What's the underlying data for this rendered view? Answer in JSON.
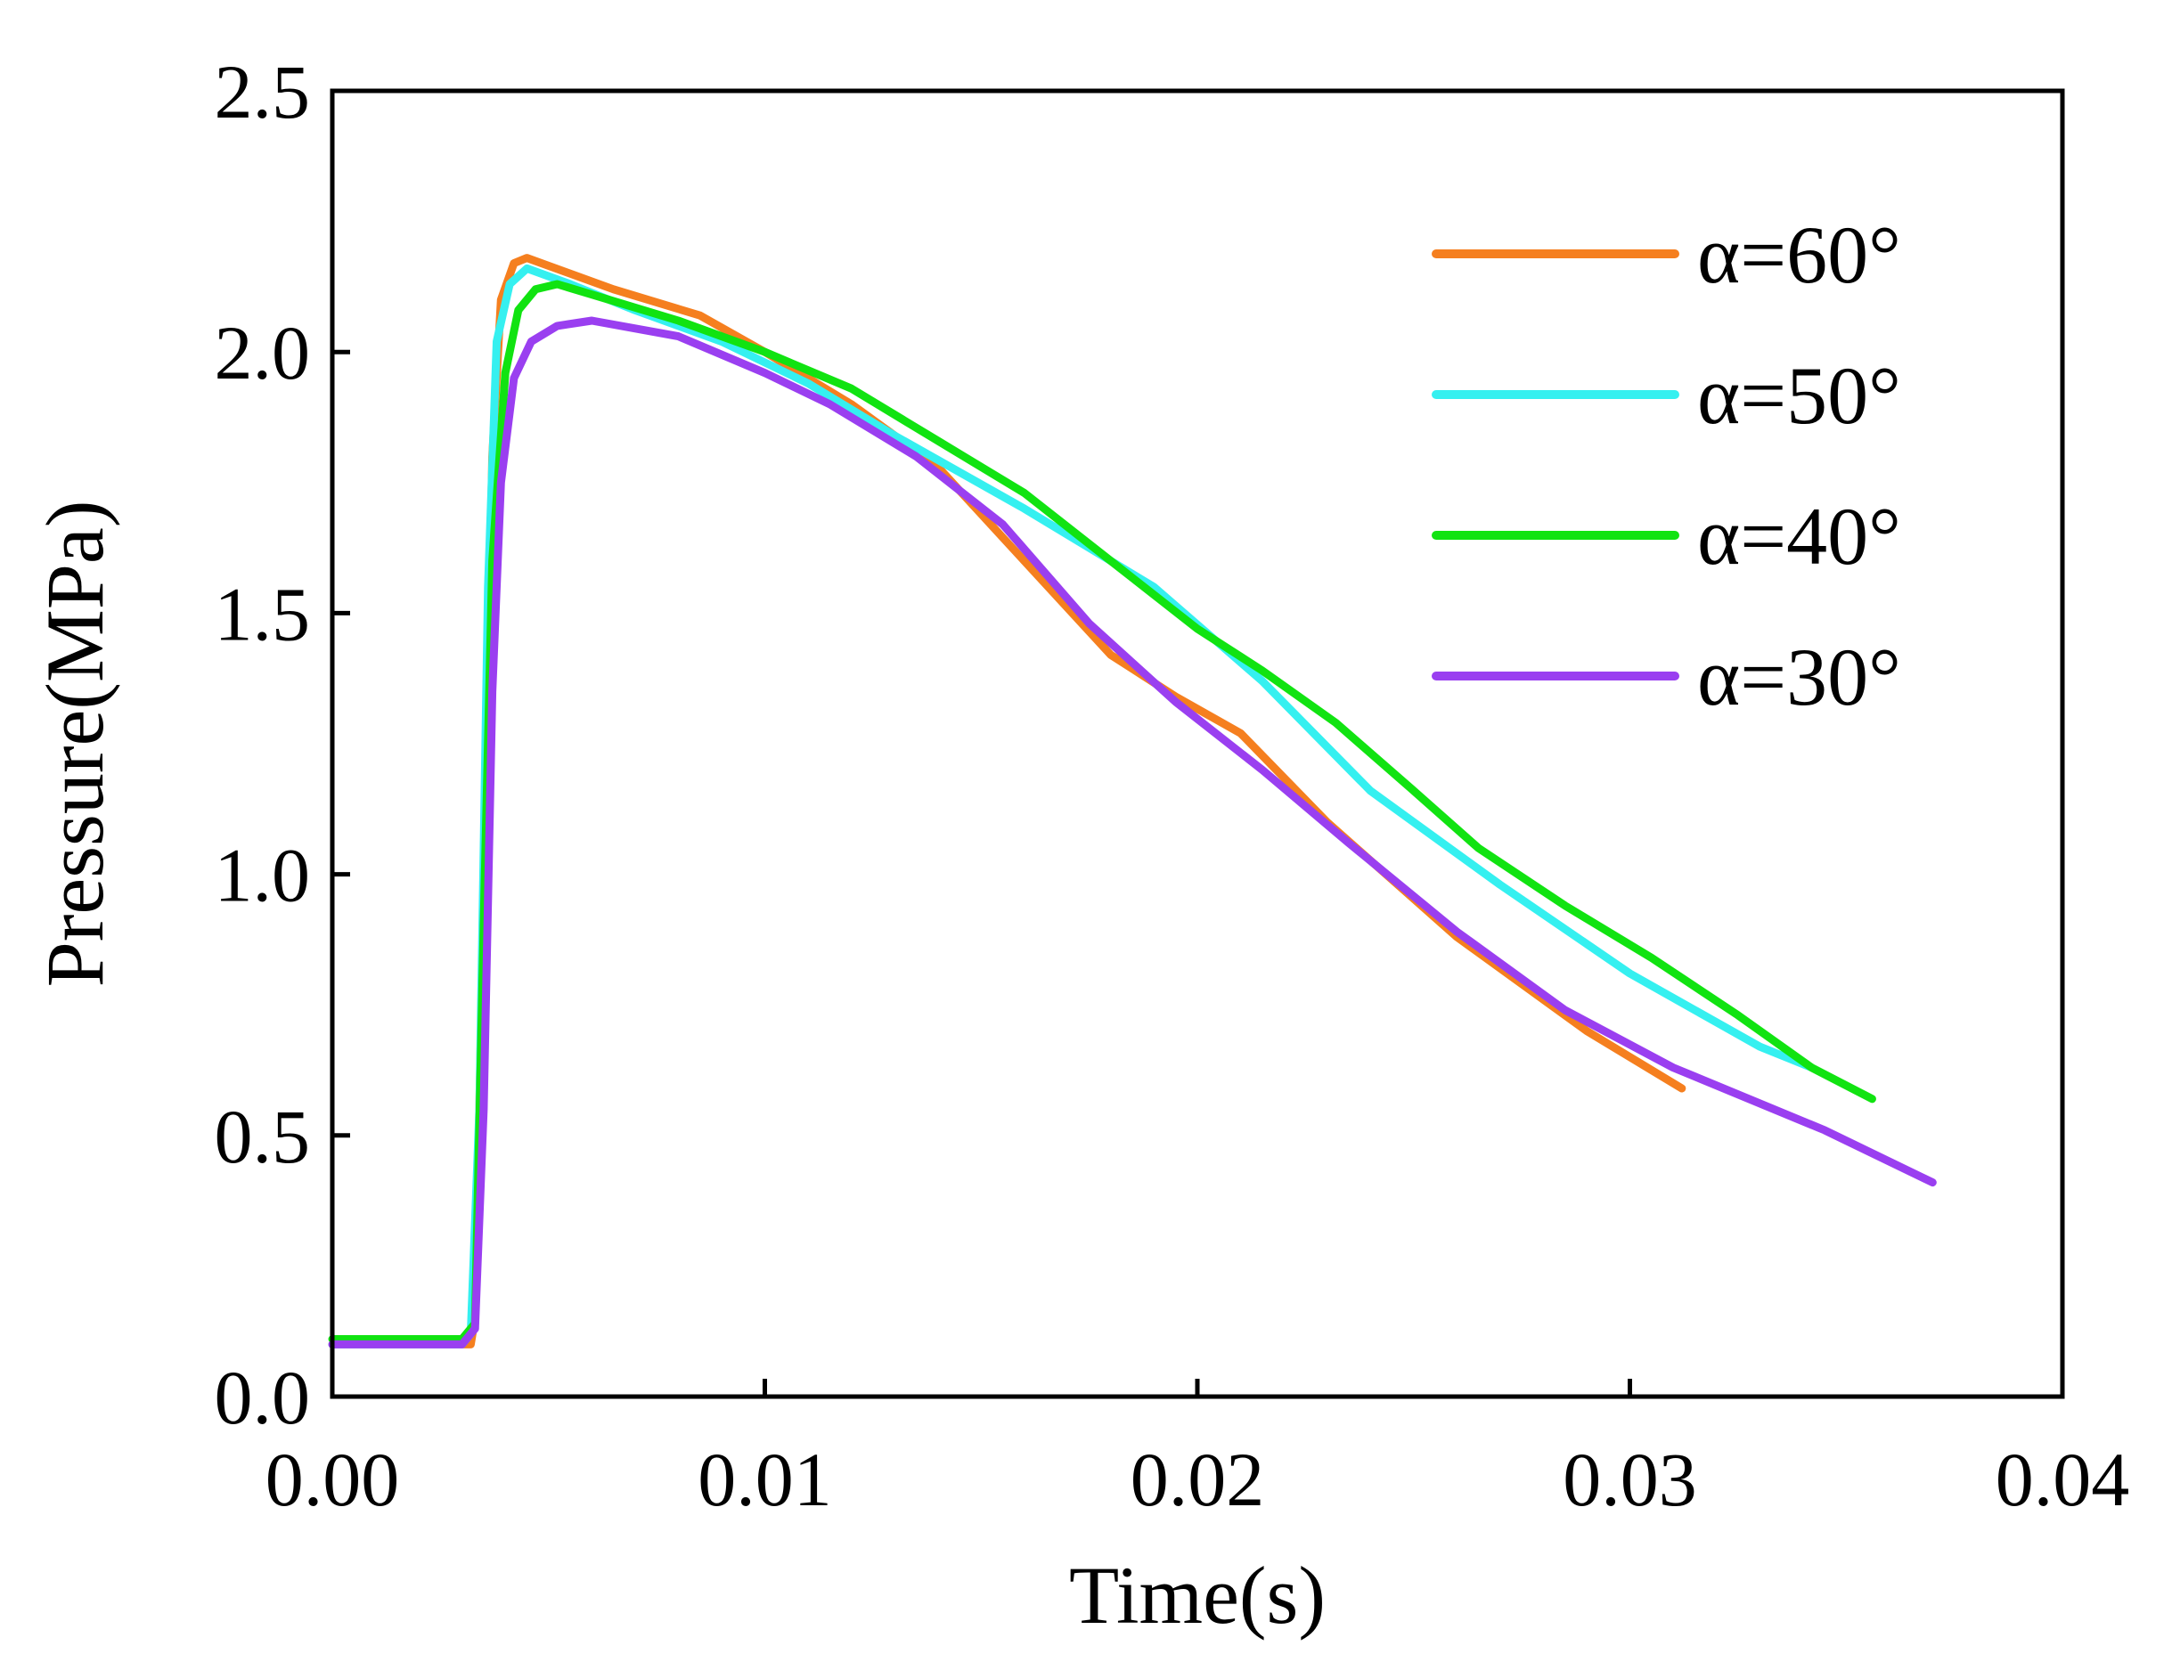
{
  "chart_data": {
    "type": "line",
    "title": "",
    "xlabel": "Time(s)",
    "ylabel": "Pressure(MPa)",
    "xlim": [
      0,
      0.04
    ],
    "ylim": [
      0,
      2.5
    ],
    "xticks": [
      0,
      0.01,
      0.02,
      0.03,
      0.04
    ],
    "yticks": [
      0,
      0.5,
      1.0,
      1.5,
      2.0,
      2.5
    ],
    "xtick_labels": [
      "0.00",
      "0.01",
      "0.02",
      "0.03",
      "0.04"
    ],
    "ytick_labels": [
      "0.0",
      "0.5",
      "1.0",
      "1.5",
      "2.0",
      "2.5"
    ],
    "grid": false,
    "legend_position": "top-right",
    "series": [
      {
        "name": "α=60°",
        "color": "#f57f1f",
        "x": [
          0,
          0.003,
          0.0032,
          0.0033,
          0.0035,
          0.0037,
          0.0039,
          0.0042,
          0.0045,
          0.0055,
          0.0065,
          0.0085,
          0.01,
          0.012,
          0.014,
          0.016,
          0.018,
          0.0195,
          0.021,
          0.023,
          0.026,
          0.029,
          0.0312
        ],
        "y": [
          0.1,
          0.1,
          0.1,
          0.15,
          0.95,
          1.8,
          2.1,
          2.17,
          2.18,
          2.15,
          2.12,
          2.07,
          2.0,
          1.9,
          1.78,
          1.6,
          1.42,
          1.34,
          1.27,
          1.1,
          0.88,
          0.7,
          0.59
        ]
      },
      {
        "name": "α=50°",
        "color": "#35f0f0",
        "x": [
          0,
          0.003,
          0.0032,
          0.0034,
          0.0036,
          0.0038,
          0.0041,
          0.0045,
          0.0055,
          0.007,
          0.009,
          0.011,
          0.013,
          0.016,
          0.019,
          0.0215,
          0.024,
          0.027,
          0.03,
          0.033,
          0.0342
        ],
        "y": [
          0.1,
          0.1,
          0.12,
          0.55,
          1.55,
          2.02,
          2.13,
          2.16,
          2.13,
          2.08,
          2.02,
          1.94,
          1.84,
          1.7,
          1.55,
          1.37,
          1.16,
          0.98,
          0.81,
          0.67,
          0.63
        ]
      },
      {
        "name": "α=40°",
        "color": "#11e311",
        "x": [
          0,
          0.003,
          0.0033,
          0.0035,
          0.0037,
          0.004,
          0.0043,
          0.0047,
          0.0052,
          0.006,
          0.008,
          0.01,
          0.012,
          0.014,
          0.016,
          0.018,
          0.02,
          0.0215,
          0.0232,
          0.025,
          0.0265,
          0.0285,
          0.0305,
          0.0325,
          0.0342,
          0.0356
        ],
        "y": [
          0.11,
          0.11,
          0.14,
          0.9,
          1.6,
          1.96,
          2.08,
          2.12,
          2.13,
          2.11,
          2.06,
          2.0,
          1.93,
          1.83,
          1.73,
          1.6,
          1.47,
          1.39,
          1.29,
          1.16,
          1.05,
          0.94,
          0.84,
          0.73,
          0.63,
          0.57
        ]
      },
      {
        "name": "α=30°",
        "color": "#9a3ff0",
        "x": [
          0,
          0.003,
          0.0033,
          0.0035,
          0.0037,
          0.0039,
          0.0042,
          0.0046,
          0.0052,
          0.006,
          0.008,
          0.01,
          0.0115,
          0.0135,
          0.0155,
          0.0175,
          0.0195,
          0.0215,
          0.0235,
          0.026,
          0.0285,
          0.031,
          0.0345,
          0.037
        ],
        "y": [
          0.1,
          0.1,
          0.13,
          0.55,
          1.35,
          1.75,
          1.95,
          2.02,
          2.05,
          2.06,
          2.03,
          1.96,
          1.9,
          1.8,
          1.67,
          1.48,
          1.33,
          1.2,
          1.06,
          0.89,
          0.74,
          0.63,
          0.51,
          0.41
        ]
      }
    ]
  }
}
